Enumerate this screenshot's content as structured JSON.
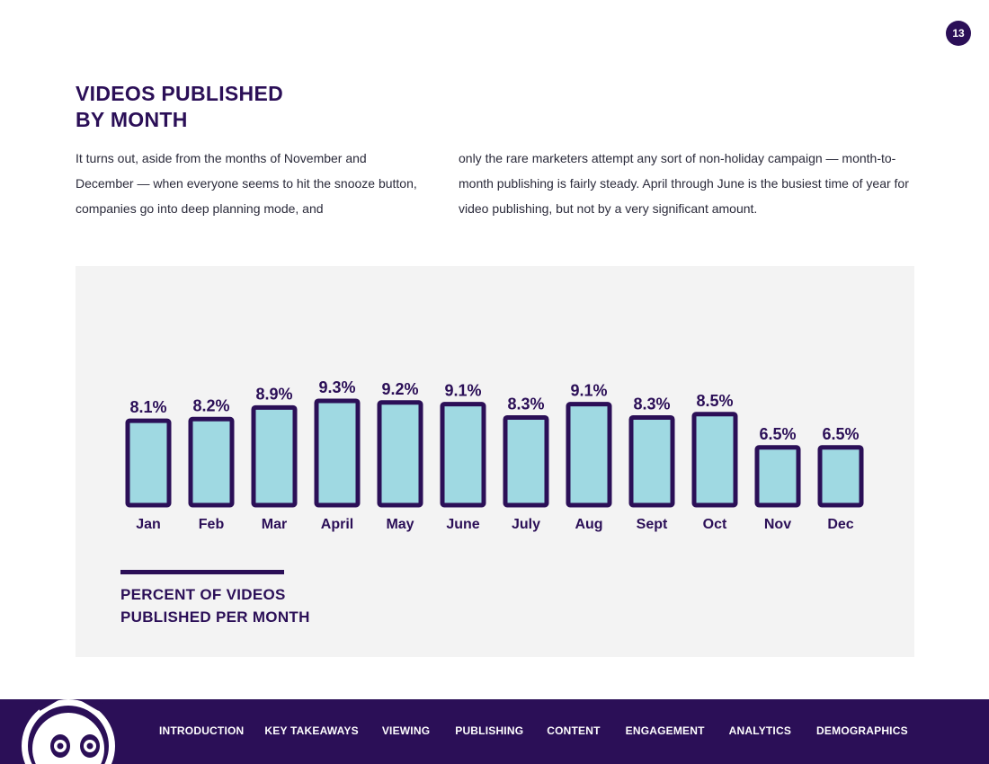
{
  "page_number": "13",
  "heading": {
    "line1": "VIDEOS PUBLISHED",
    "line2": "BY MONTH"
  },
  "intro": {
    "left": "It turns out, aside from the months of November and December — when everyone seems to hit the snooze button, companies go into deep planning mode, and",
    "right": "only the rare marketers attempt any sort of non-holiday campaign — month-to-month publishing is fairly steady. April through June is the busiest time of year for video publishing, but not by a very significant amount."
  },
  "chart_data": {
    "type": "bar",
    "title": "PERCENT OF VIDEOS PUBLISHED PER MONTH",
    "categories": [
      "Jan",
      "Feb",
      "Mar",
      "April",
      "May",
      "June",
      "July",
      "Aug",
      "Sept",
      "Oct",
      "Nov",
      "Dec"
    ],
    "values": [
      8.1,
      8.2,
      8.9,
      9.3,
      9.2,
      9.1,
      8.3,
      9.1,
      8.3,
      8.5,
      6.5,
      6.5
    ],
    "value_labels": [
      "8.1%",
      "8.2%",
      "8.9%",
      "9.3%",
      "9.2%",
      "9.1%",
      "8.3%",
      "9.1%",
      "8.3%",
      "8.5%",
      "6.5%",
      "6.5%"
    ],
    "xlabel": "",
    "ylabel": "",
    "ylim": [
      0,
      10
    ],
    "grid": false,
    "colors": {
      "fill": "#9fd9e2",
      "stroke": "#2b0f57",
      "text": "#2b0f57"
    }
  },
  "caption": {
    "line1": "PERCENT OF VIDEOS",
    "line2": "PUBLISHED PER MONTH"
  },
  "footer": {
    "nav": [
      "INTRODUCTION",
      "KEY TAKEAWAYS",
      "VIEWING",
      "PUBLISHING",
      "CONTENT",
      "ENGAGEMENT",
      "ANALYTICS",
      "DEMOGRAPHICS"
    ],
    "mascot_icon": "robot-mascot-icon"
  },
  "colors": {
    "brand": "#2b0f57",
    "panel": "#f3f3f3",
    "bar": "#9fd9e2"
  }
}
